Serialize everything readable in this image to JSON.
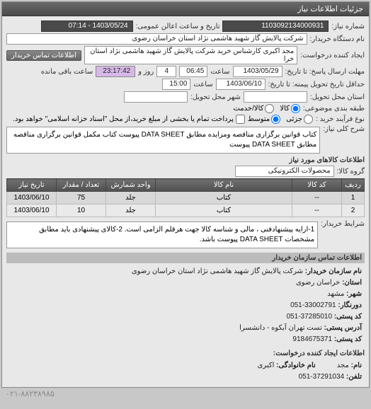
{
  "header": {
    "title": "جزئیات اطلاعات نیاز"
  },
  "form": {
    "need_number_label": "شماره نیاز:",
    "need_number": "1103092134000931",
    "announce_label": "تاریخ و ساعت اعالن عمومی:",
    "announce_value": "1403/05/24 - 07:14",
    "buyer_org_label": "نام دستگاه خریدار:",
    "buyer_org": "شرکت پالایش گاز شهید هاشمی نژاد   استان خراسان رضوی",
    "requester_label": "ایجاد کننده درخواست:",
    "requester": "مجد اکبری کارشناس خرید شرکت پالایش گاز شهید هاشمی نژاد   استان خرا",
    "contact_btn": "اطلاعات تماس خریدار",
    "deadline_label": "مهلت ارسال پاسخ: تا تاریخ:",
    "deadline_date": "1403/05/29",
    "time_label": "ساعت",
    "deadline_time": "06:45",
    "days_count": "4",
    "days_suffix": "روز و",
    "remaining_time": "23:17:42",
    "remaining_suffix": "ساعت باقی مانده",
    "delivery_label": "حداقل تاریخ تحویل پیمنه: تا تاریخ:",
    "delivery_date": "1403/06/10",
    "delivery_time": "15:00",
    "delivery_place_label": "استان محل تحویل:",
    "delivery_city_label": "شهر محل تحویل:",
    "pkg_type_label": "طبقه بندی موضوعی:",
    "pkg_kala": "کالا",
    "pkg_kala_khadam": "کالا/خدمت",
    "contract_type_label": "نوع فرآیند خرید :",
    "ct_low": "جزئی",
    "ct_mid": "متوسط",
    "ct_note": "پرداخت تمام یا بخشی از مبلغ خرید،از محل \"اسناد خزانه اسلامی\" خواهد بود.",
    "desc_label": "شرح کلی نیاز:",
    "desc_text": "کتاب قوانین برگزاری مناقصه ومزایده مطابق DATA SHEET پیوست کتاب مکمل قوانین برگزاری مناقصه مطابق DATA SHEET پیوست",
    "goods_section": "اطلاعات کالاهای مورد نیاز",
    "group_label": "گروه کالا:",
    "group_value": "محصولات الکترونیکی",
    "conditions_label": "شرایط خریدار:",
    "conditions_text": "1-ارایه پیشنهادفنی ، مالی و شناسه کالا جهت هرقلم الزامی است. 2-کالای پیشنهادی باید مطابق مشخصات DATA SHEET پیوست باشد.",
    "contact_section": "اطلاعات تماس سازمان خریدار",
    "org_name_lbl": "نام سازمان خریدار:",
    "org_name": "شرکت پالایش گاز شهید هاشمی نژاد استان خراسان رضوی",
    "province_lbl": "استان:",
    "province": "خراسان رضوی",
    "city_lbl": "شهر:",
    "city": "مشهد",
    "phone_lbl": "دورنگار:",
    "phone": "33002791-051",
    "postal_lbl": "کد پستی:",
    "postal": "37285010-051",
    "address_lbl": "آدرس پستی:",
    "address": "تست تهران آبکوه - دانشسرا",
    "postcode_lbl": "کد پستی:",
    "postcode": "9184675371",
    "creator_section": "اطلاعات ایجاد کننده درخواست:",
    "name_lbl": "نام:",
    "name": "مجد",
    "family_lbl": "نام خانوادگی:",
    "family": "اکبری",
    "tel_lbl": "تلفن:",
    "tel": "37291034-051"
  },
  "table": {
    "columns": [
      "ردیف",
      "کد کالا",
      "نام کالا",
      "واحد شمارش",
      "تعداد / مقدار",
      "تاریخ نیاز"
    ],
    "rows": [
      [
        "1",
        "--",
        "کتاب",
        "جلد",
        "75",
        "1403/06/10"
      ],
      [
        "2",
        "--",
        "کتاب",
        "جلد",
        "10",
        "1403/06/10"
      ]
    ],
    "col_widths": [
      "32px",
      "70px",
      "auto",
      "70px",
      "70px",
      "70px"
    ]
  },
  "footer_phone": "۰۲۱-۸۸۲۳۸۹۸۵"
}
